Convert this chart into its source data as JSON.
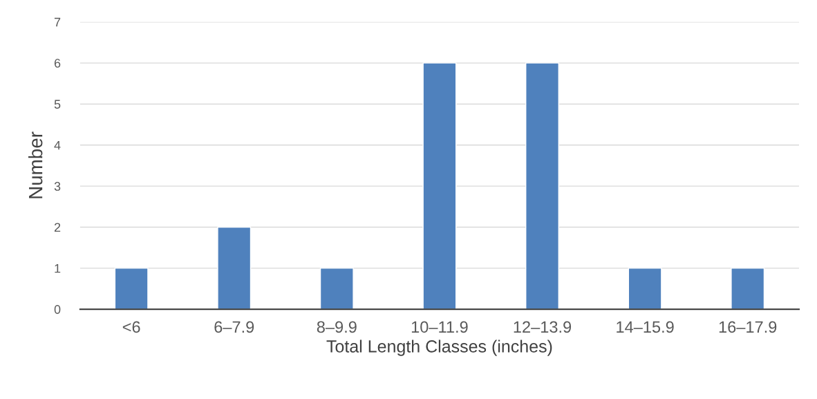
{
  "chart_data": {
    "type": "bar",
    "xlabel": "Total Length Classes (inches)",
    "ylabel": "Number",
    "categories": [
      "<6",
      "6–7.9",
      "8–9.9",
      "10–11.9",
      "12–13.9",
      "14–15.9",
      "16–17.9"
    ],
    "values": [
      1,
      2,
      1,
      6,
      6,
      1,
      1
    ],
    "color": "#4f81bd",
    "ylim": [
      0,
      7
    ],
    "yticks": [
      0,
      1,
      2,
      3,
      4,
      5,
      6,
      7
    ],
    "grid": "y",
    "legend": false
  }
}
